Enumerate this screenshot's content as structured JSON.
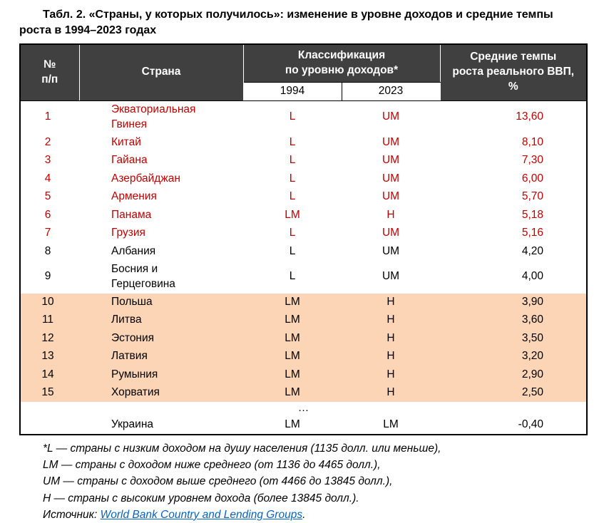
{
  "caption": "Табл. 2. «Страны, у которых получилось»: изменение в уровне доходов и средние темпы роста в 1994–2023 годах",
  "table": {
    "headers": {
      "num": "№\nп/п",
      "country": "Страна",
      "classification": "Классификация\nпо уровню доходов*",
      "year_1994": "1994",
      "year_2023": "2023",
      "growth": "Средние темпы\nроста реального ВВП,\n%"
    },
    "rows": [
      {
        "num": "1",
        "country": "Экваториальная Гвинея",
        "income_1994": "L",
        "income_2023": "UM",
        "growth": "13,60",
        "variant": "red"
      },
      {
        "num": "2",
        "country": "Китай",
        "income_1994": "L",
        "income_2023": "UM",
        "growth": "8,10",
        "variant": "red"
      },
      {
        "num": "3",
        "country": "Гайана",
        "income_1994": "L",
        "income_2023": "UM",
        "growth": "7,30",
        "variant": "red"
      },
      {
        "num": "4",
        "country": "Азербайджан",
        "income_1994": "L",
        "income_2023": "UM",
        "growth": "6,00",
        "variant": "red"
      },
      {
        "num": "5",
        "country": "Армения",
        "income_1994": "L",
        "income_2023": "UM",
        "growth": "5,70",
        "variant": "red"
      },
      {
        "num": "6",
        "country": "Панама",
        "income_1994": "LM",
        "income_2023": "H",
        "growth": "5,18",
        "variant": "red"
      },
      {
        "num": "7",
        "country": "Грузия",
        "income_1994": "L",
        "income_2023": "UM",
        "growth": "5,16",
        "variant": "red"
      },
      {
        "num": "8",
        "country": "Албания",
        "income_1994": "L",
        "income_2023": "UM",
        "growth": "4,20",
        "variant": "plain"
      },
      {
        "num": "9",
        "country": "Босния и Герцеговина",
        "income_1994": "L",
        "income_2023": "UM",
        "growth": "4,00",
        "variant": "plain"
      },
      {
        "num": "10",
        "country": "Польша",
        "income_1994": "LM",
        "income_2023": "H",
        "growth": "3,90",
        "variant": "highlight"
      },
      {
        "num": "11",
        "country": "Литва",
        "income_1994": "LM",
        "income_2023": "H",
        "growth": "3,60",
        "variant": "highlight"
      },
      {
        "num": "12",
        "country": "Эстония",
        "income_1994": "LM",
        "income_2023": "H",
        "growth": "3,50",
        "variant": "highlight"
      },
      {
        "num": "13",
        "country": "Латвия",
        "income_1994": "LM",
        "income_2023": "H",
        "growth": "3,20",
        "variant": "highlight"
      },
      {
        "num": "14",
        "country": "Румыния",
        "income_1994": "LM",
        "income_2023": "H",
        "growth": "2,90",
        "variant": "highlight"
      },
      {
        "num": "15",
        "country": "Хорватия",
        "income_1994": "LM",
        "income_2023": "H",
        "growth": "2,50",
        "variant": "highlight"
      },
      {
        "variant": "ellipsis",
        "text": "…"
      },
      {
        "num": "",
        "country": "Украина",
        "income_1994": "LM",
        "income_2023": "LM",
        "growth": "-0,40",
        "variant": "plain"
      }
    ]
  },
  "footnotes": [
    "*L — страны с низким доходом на душу населения (1135 долл. или меньше),",
    "LM — страны с доходом ниже среднего (от 1136 до 4465 долл.),",
    "UM — страны с доходом выше среднего (от 4466 до 13845 долл.),",
    "H — страны с высоким уровнем дохода (более 13845 долл.)."
  ],
  "source": {
    "label": "Источник: ",
    "link_text": "World Bank Country and Lending Groups",
    "suffix": "."
  },
  "colors": {
    "header_bg": "#404040",
    "header_text": "#FFFFFF",
    "red_text": "#C00000",
    "highlight_bg": "#FBD5B5",
    "link": "#0563C1"
  }
}
